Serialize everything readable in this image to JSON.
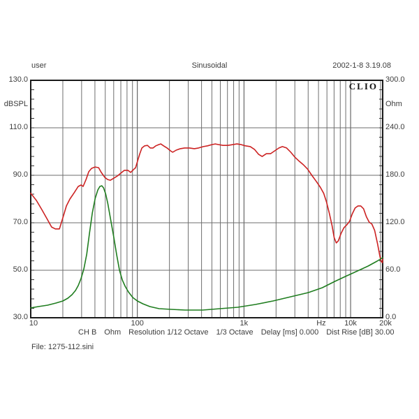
{
  "header": {
    "left": "user",
    "center": "Sinusoidal",
    "right": "2002-1-8 3.19.08"
  },
  "logo": "CLIO",
  "status_bar": {
    "parts": [
      "CH B",
      "Ohm",
      "Resolution 1/12 Octave",
      "1/3 Octave",
      "Delay [ms] 0.000",
      "Dist Rise [dB] 30.00"
    ]
  },
  "file_label": "File: 1275-112.sini",
  "colors": {
    "spl_curve": "#cc2222",
    "impedance_curve": "#1f7d1f",
    "grid_minor": "#6e6e6e",
    "grid_major": "#4a4a4a",
    "grid_light": "#b5b5b5",
    "border": "#1a1a1a",
    "text": "#3c3c3c"
  },
  "chart_data": {
    "type": "line",
    "x_axis": {
      "scale": "log",
      "min": 10,
      "max": 20000,
      "labels": [
        {
          "text": "10",
          "f": 10
        },
        {
          "text": "100",
          "f": 100
        },
        {
          "text": "1k",
          "f": 1000
        },
        {
          "text": "Hz",
          "f": 5300
        },
        {
          "text": "10k",
          "f": 10000
        },
        {
          "text": "20k",
          "f": 20000
        }
      ]
    },
    "left_axis": {
      "unit": "dBSPL",
      "min": 30,
      "max": 130,
      "major_step": 20,
      "minor_step": 4,
      "tick_labels": [
        "130.0",
        "110.0",
        "90.0",
        "70.0",
        "50.0",
        "30.0"
      ]
    },
    "right_axis": {
      "unit": "Ohm",
      "min": 0,
      "max": 300,
      "major_step": 60,
      "minor_step": 12,
      "tick_labels": [
        "300.0",
        "240.0",
        "180.0",
        "120.0",
        "60.0",
        "0.0"
      ]
    },
    "grid": {
      "h_lines_db": [
        50,
        70,
        90,
        110
      ],
      "v_minor_decades": [
        10,
        100,
        1000
      ],
      "v_major": [
        100,
        1000,
        10000
      ]
    },
    "series": [
      {
        "name": "SPL response",
        "axis": "left",
        "unit": "dBSPL",
        "color": "#cc2222",
        "points": [
          [
            10,
            82.4
          ],
          [
            11.3,
            79.4
          ],
          [
            12.7,
            75.6
          ],
          [
            14.4,
            71.2
          ],
          [
            15.7,
            68.2
          ],
          [
            17,
            67.4
          ],
          [
            18.6,
            67.4
          ],
          [
            20,
            72.1
          ],
          [
            21.6,
            77.1
          ],
          [
            23.3,
            80
          ],
          [
            25.5,
            82.6
          ],
          [
            27.9,
            85.3
          ],
          [
            29.7,
            85.9
          ],
          [
            31,
            85.3
          ],
          [
            33,
            88.2
          ],
          [
            35,
            91.5
          ],
          [
            37.2,
            92.9
          ],
          [
            40.1,
            93.5
          ],
          [
            43.3,
            93.2
          ],
          [
            45.9,
            91.2
          ],
          [
            49.6,
            89.1
          ],
          [
            52.7,
            88.2
          ],
          [
            55.9,
            87.9
          ],
          [
            60.3,
            88.8
          ],
          [
            65,
            89.7
          ],
          [
            70.1,
            90.9
          ],
          [
            75.6,
            92.1
          ],
          [
            81.6,
            92.1
          ],
          [
            86.6,
            91.2
          ],
          [
            92,
            92.4
          ],
          [
            96.3,
            93.2
          ],
          [
            100.8,
            96.2
          ],
          [
            105.4,
            99.1
          ],
          [
            110.3,
            101.5
          ],
          [
            117.2,
            102.4
          ],
          [
            124.5,
            102.6
          ],
          [
            132.3,
            101.5
          ],
          [
            140.5,
            101.5
          ],
          [
            149.2,
            102.4
          ],
          [
            158.5,
            102.9
          ],
          [
            165.9,
            103.2
          ],
          [
            176.2,
            102.4
          ],
          [
            190,
            101.5
          ],
          [
            204.9,
            100.3
          ],
          [
            214.4,
            99.7
          ],
          [
            231.2,
            100.6
          ],
          [
            253.1,
            101.2
          ],
          [
            277.1,
            101.5
          ],
          [
            308.1,
            101.5
          ],
          [
            342.4,
            101.2
          ],
          [
            374.8,
            101.5
          ],
          [
            416.6,
            102.1
          ],
          [
            456,
            102.4
          ],
          [
            499.4,
            102.9
          ],
          [
            538.5,
            103.2
          ],
          [
            580.7,
            102.9
          ],
          [
            635.9,
            102.6
          ],
          [
            706.6,
            102.6
          ],
          [
            785.5,
            102.9
          ],
          [
            859.7,
            103.2
          ],
          [
            941.4,
            102.9
          ],
          [
            1031,
            102.4
          ],
          [
            1146,
            102.1
          ],
          [
            1254,
            100.9
          ],
          [
            1373,
            98.8
          ],
          [
            1481,
            97.9
          ],
          [
            1622,
            99.1
          ],
          [
            1774,
            99.1
          ],
          [
            1943,
            100.3
          ],
          [
            2128,
            101.5
          ],
          [
            2295,
            102.1
          ],
          [
            2512,
            101.5
          ],
          [
            2750,
            99.7
          ],
          [
            3011,
            97.6
          ],
          [
            3297,
            95.9
          ],
          [
            3610,
            94.4
          ],
          [
            3953,
            92.6
          ],
          [
            4328,
            90
          ],
          [
            4740,
            87.6
          ],
          [
            5190,
            85
          ],
          [
            5594,
            82.4
          ],
          [
            5940,
            78.8
          ],
          [
            6310,
            74.1
          ],
          [
            6702,
            68.8
          ],
          [
            7012,
            63.8
          ],
          [
            7339,
            61.5
          ],
          [
            7679,
            62.4
          ],
          [
            8157,
            65.6
          ],
          [
            8665,
            67.9
          ],
          [
            9203,
            69.1
          ],
          [
            9776,
            70.6
          ],
          [
            10385,
            73.8
          ],
          [
            11031,
            76.2
          ],
          [
            11720,
            77.1
          ],
          [
            12450,
            77.1
          ],
          [
            13224,
            75.9
          ],
          [
            14049,
            72.6
          ],
          [
            14926,
            70.3
          ],
          [
            15849,
            69.4
          ],
          [
            16827,
            66.8
          ],
          [
            17890,
            61.2
          ],
          [
            18710,
            56.5
          ],
          [
            19280,
            53.8
          ],
          [
            19880,
            53.2
          ],
          [
            20000,
            54.7
          ]
        ]
      },
      {
        "name": "Impedance",
        "axis": "right",
        "unit": "Ohm",
        "color": "#1f7d1f",
        "points": [
          [
            10,
            12.4
          ],
          [
            11.8,
            14.1
          ],
          [
            14.4,
            15.9
          ],
          [
            17.2,
            18.5
          ],
          [
            20,
            21.2
          ],
          [
            22.3,
            24.7
          ],
          [
            24.4,
            29.1
          ],
          [
            26.3,
            34.4
          ],
          [
            27.9,
            40.6
          ],
          [
            29.6,
            49.4
          ],
          [
            31.5,
            61.8
          ],
          [
            33.5,
            80.3
          ],
          [
            35.5,
            105.9
          ],
          [
            37.8,
            132.4
          ],
          [
            40.2,
            150.9
          ],
          [
            42.6,
            161.5
          ],
          [
            44.5,
            165.9
          ],
          [
            46.4,
            166.8
          ],
          [
            48.2,
            164.1
          ],
          [
            50.5,
            156.2
          ],
          [
            52.8,
            144.7
          ],
          [
            56,
            125.3
          ],
          [
            60,
            102.4
          ],
          [
            64,
            79.4
          ],
          [
            68,
            60
          ],
          [
            72.3,
            47.6
          ],
          [
            76.8,
            39.7
          ],
          [
            82.6,
            32.6
          ],
          [
            90.5,
            25.6
          ],
          [
            100,
            21.2
          ],
          [
            113,
            17.6
          ],
          [
            131,
            14.1
          ],
          [
            160,
            11.5
          ],
          [
            207,
            10.6
          ],
          [
            280,
            9.7
          ],
          [
            410,
            9.7
          ],
          [
            597,
            11.5
          ],
          [
            874,
            13.2
          ],
          [
            1280,
            16.8
          ],
          [
            1870,
            21.2
          ],
          [
            2740,
            26.5
          ],
          [
            4010,
            31.8
          ],
          [
            5430,
            37.9
          ],
          [
            7110,
            45.9
          ],
          [
            9200,
            52.9
          ],
          [
            11600,
            59.1
          ],
          [
            14600,
            65.3
          ],
          [
            17700,
            71.5
          ],
          [
            20000,
            75.9
          ]
        ]
      }
    ]
  }
}
